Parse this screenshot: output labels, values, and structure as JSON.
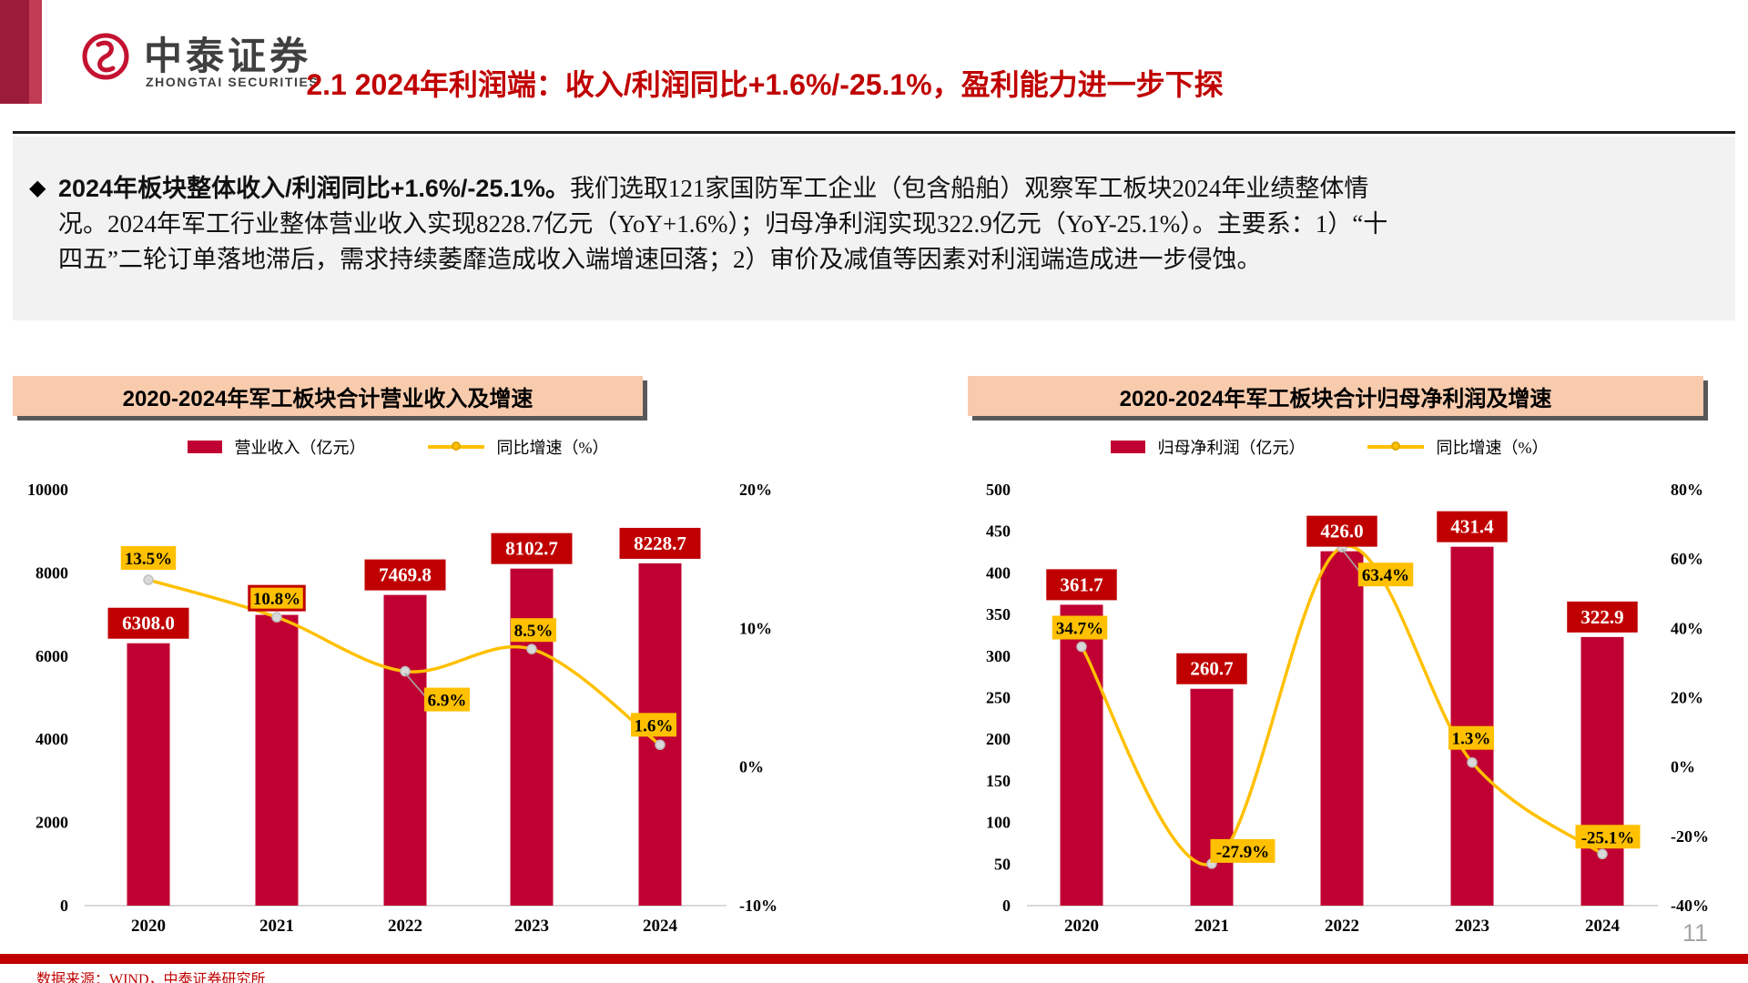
{
  "header": {
    "logo_cn": "中泰证券",
    "logo_en": "ZHONGTAI SECURITIES",
    "title": "2.1 2024年利润端：收入/利润同比+1.6%/-25.1%，盈利能力进一步下探"
  },
  "summary": {
    "bullet": "◆",
    "lead": "2024年板块整体收入/利润同比+1.6%/-25.1%。",
    "body": "我们选取121家国防军工企业（包含船舶）观察军工板块2024年业绩整体情况。2024年军工行业整体营业收入实现8228.7亿元（YoY+1.6%）；归母净利润实现322.9亿元（YoY-25.1%）。主要系：1）“十四五”二轮订单落地滞后，需求持续萎靡造成收入端增速回落；2）审价及减值等因素对利润端造成进一步侵蚀。"
  },
  "chart_data": [
    {
      "type": "bar",
      "title": "2020-2024年军工板块合计营业收入及增速",
      "categories": [
        "2020",
        "2021",
        "2022",
        "2023",
        "2024"
      ],
      "series": [
        {
          "name": "营业收入（亿元）",
          "type": "bar",
          "values": [
            6308.0,
            6990,
            7469.8,
            8102.7,
            8228.7
          ],
          "labels": [
            "6308.0",
            null,
            "7469.8",
            "8102.7",
            "8228.7"
          ]
        },
        {
          "name": "同比增速（%）",
          "type": "line",
          "values": [
            13.5,
            10.8,
            6.9,
            8.5,
            1.6
          ],
          "labels": [
            "13.5%",
            "10.8%",
            "6.9%",
            "8.5%",
            "1.6%"
          ]
        }
      ],
      "left_axis": {
        "min": 0,
        "max": 10000,
        "ticks": [
          10000,
          8000,
          6000,
          4000,
          2000,
          0
        ]
      },
      "right_axis": {
        "min": -10,
        "max": 20,
        "ticks": [
          20,
          10,
          0,
          -10
        ]
      },
      "legend_position": "top",
      "grid": false
    },
    {
      "type": "bar",
      "title": "2020-2024年军工板块合计归母净利润及增速",
      "categories": [
        "2020",
        "2021",
        "2022",
        "2023",
        "2024"
      ],
      "series": [
        {
          "name": "归母净利润（亿元）",
          "type": "bar",
          "values": [
            361.7,
            260.7,
            426.0,
            431.4,
            322.9
          ],
          "labels": [
            "361.7",
            "260.7",
            "426.0",
            "431.4",
            "322.9"
          ]
        },
        {
          "name": "同比增速（%）",
          "type": "line",
          "values": [
            34.7,
            -27.9,
            63.4,
            1.3,
            -25.1
          ],
          "labels": [
            "34.7%",
            "-27.9%",
            "63.4%",
            "1.3%",
            "-25.1%"
          ]
        }
      ],
      "left_axis": {
        "min": 0,
        "max": 500,
        "ticks": [
          500,
          450,
          400,
          350,
          300,
          250,
          200,
          150,
          100,
          50,
          0
        ]
      },
      "right_axis": {
        "min": -40,
        "max": 80,
        "ticks": [
          80,
          60,
          40,
          20,
          0,
          -20,
          -40
        ]
      },
      "legend_position": "top",
      "grid": false
    }
  ],
  "footer": {
    "source": "数据来源：WIND，中泰证券研究所",
    "page": "11"
  },
  "colors": {
    "bar": "#c00032",
    "value_label_bg": "#c00000",
    "line": "#ffc000",
    "growth_label_bg": "#ffc000",
    "growth_label_border": "#c00000",
    "marker_fill": "#d9d9d9",
    "marker_stroke": "#bfbfbf",
    "leader": "#a6a6a6",
    "baseline": "#d9d9d9",
    "title_red": "#c00000",
    "panel_gray": "#f2f2f2",
    "title_bar_pink": "#f8cbad"
  }
}
